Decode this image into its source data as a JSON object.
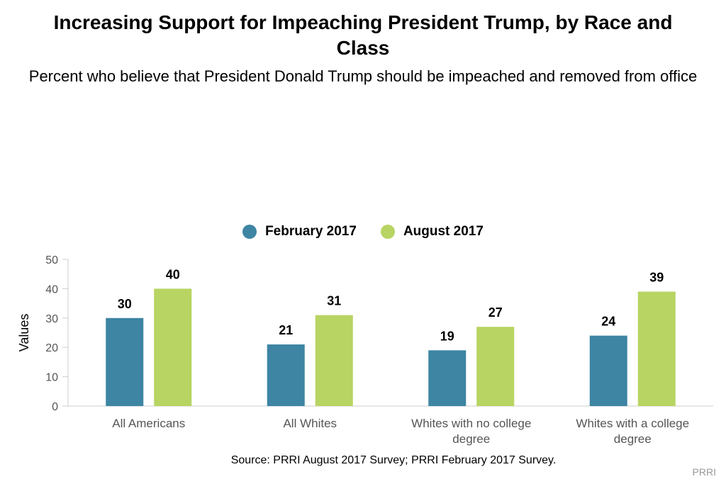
{
  "title": "Increasing Support for Impeaching President Trump, by Race and Class",
  "subtitle": "Percent who believe that President Donald Trump should be impeached and removed from office",
  "source": "Source: PRRI August 2017 Survey; PRRI February 2017 Survey.",
  "credit": "PRRI",
  "colors": {
    "february": "#3d85a3",
    "august": "#b8d462",
    "axis": "#cccccc",
    "tick_text": "#555555"
  },
  "chart_data": {
    "type": "bar",
    "title": "Increasing Support for Impeaching President Trump, by Race and Class",
    "subtitle": "Percent who believe that President Donald Trump should be impeached and removed from office",
    "xlabel": "",
    "ylabel": "Values",
    "ylim": [
      0,
      50
    ],
    "yticks": [
      0,
      10,
      20,
      30,
      40,
      50
    ],
    "grid": false,
    "legend": "top-center",
    "categories": [
      [
        "All Americans"
      ],
      [
        "All Whites"
      ],
      [
        "Whites with no college",
        "degree"
      ],
      [
        "Whites with a college",
        "degree"
      ]
    ],
    "series": [
      {
        "name": "February 2017",
        "color": "#3d85a3",
        "values": [
          30,
          21,
          19,
          24
        ]
      },
      {
        "name": "August 2017",
        "color": "#b8d462",
        "values": [
          40,
          31,
          27,
          39
        ]
      }
    ]
  }
}
